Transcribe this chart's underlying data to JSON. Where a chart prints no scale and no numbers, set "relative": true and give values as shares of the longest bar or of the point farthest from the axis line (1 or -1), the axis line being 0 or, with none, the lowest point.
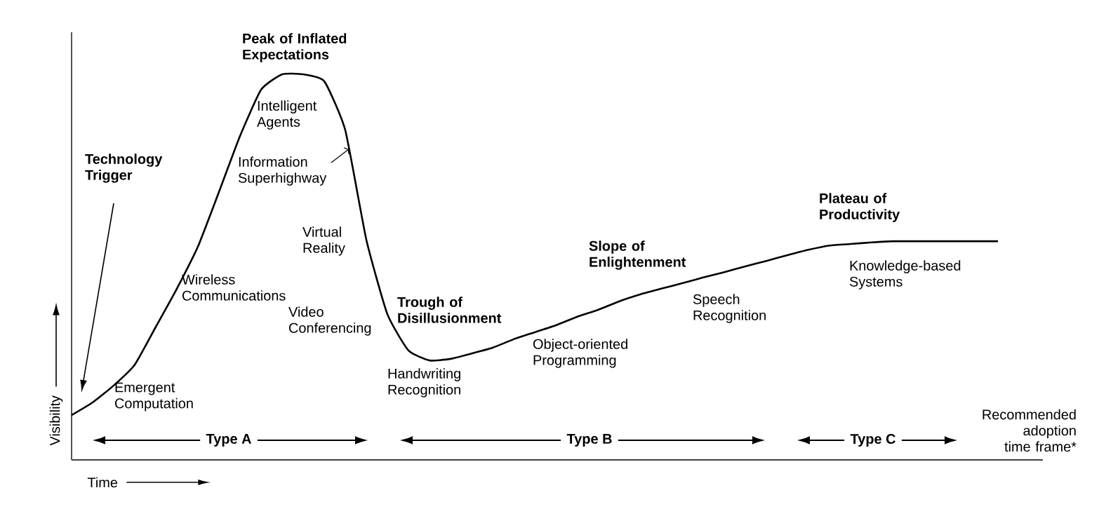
{
  "chart_data": {
    "type": "line",
    "relative": true,
    "color": "#000000",
    "marker": "none",
    "line_style": "solid",
    "xlabel": "Time",
    "ylabel": "Visibility",
    "categories": [
      null,
      null,
      null,
      null,
      null,
      null,
      null,
      null,
      null,
      null,
      null,
      null,
      null,
      null,
      null,
      null,
      null,
      null,
      null,
      null,
      null,
      null,
      null,
      null,
      null,
      null,
      null,
      null,
      null,
      null,
      null,
      null,
      null,
      null,
      null,
      null,
      null,
      null,
      null,
      null,
      null,
      null,
      null,
      null,
      null
    ],
    "values": [
      0.116,
      0.149,
      0.193,
      0.247,
      0.345,
      0.444,
      0.553,
      0.695,
      0.84,
      0.96,
      1,
      1,
      0.982,
      0.855,
      0.571,
      0.378,
      0.284,
      0.258,
      0.262,
      0.276,
      0.291,
      0.313,
      0.331,
      0.349,
      0.371,
      0.389,
      0.411,
      0.429,
      0.444,
      0.458,
      0.473,
      0.487,
      0.502,
      0.516,
      0.531,
      0.545,
      0.556,
      0.56,
      0.564,
      0.567,
      0.567,
      0.567,
      0.567,
      0.567,
      0.567
    ],
    "annotations": [
      "Peak of Inflated Expectations",
      "Technology Trigger",
      "Intelligent Agents",
      "Information Superhighway",
      "Virtual Reality",
      "Wireless Communications",
      "Video Conferencing",
      "Trough of Disillusionment",
      "Emergent Computation",
      "Handwriting Recognition",
      "Object-oriented Programming",
      "Slope of Enlightenment",
      "Speech Recognition",
      "Plateau of Productivity",
      "Knowledge-based Systems",
      "Recommended adoption time frame*",
      "Type A",
      "Type B",
      "Type C"
    ]
  }
}
